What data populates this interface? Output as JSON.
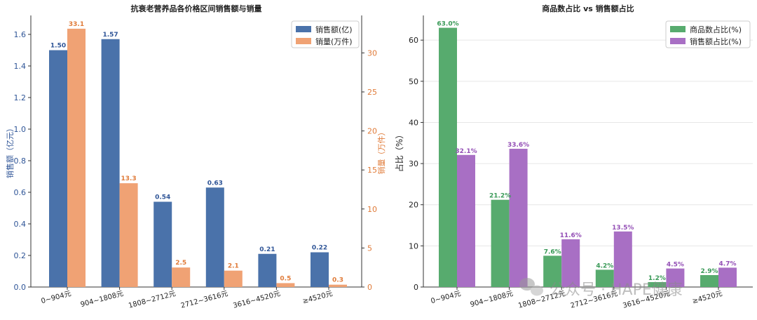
{
  "chart_data": [
    {
      "type": "bar",
      "title": "抗衰老营养品各价格区间销售额与销量",
      "categories": [
        "0~904元",
        "904~1808元",
        "1808~2712元",
        "2712~3616元",
        "3616~4520元",
        "≥4520元"
      ],
      "ylabel": "销售额（亿元）",
      "ylabel_right": "销量（万件）",
      "ylim": [
        0,
        1.72
      ],
      "ylim_right": [
        0,
        34.8
      ],
      "yticks": [
        "0.0",
        "0.2",
        "0.4",
        "0.6",
        "0.8",
        "1.0",
        "1.2",
        "1.4",
        "1.6"
      ],
      "yticks_right": [
        "0",
        "5",
        "10",
        "15",
        "20",
        "25",
        "30"
      ],
      "legend_position": "top-right",
      "series": [
        {
          "name": "销售额(亿)",
          "axis": "left",
          "color": "#4a72aa",
          "label_color": "#2f5597",
          "values": [
            1.5,
            1.57,
            0.54,
            0.63,
            0.21,
            0.22
          ],
          "labels": [
            "1.50",
            "1.57",
            "0.54",
            "0.63",
            "0.21",
            "0.22"
          ]
        },
        {
          "name": "销量(万件)",
          "axis": "right",
          "color": "#f0a274",
          "label_color": "#e07b39",
          "values": [
            33.1,
            13.3,
            2.5,
            2.1,
            0.5,
            0.3
          ],
          "labels": [
            "33.1",
            "13.3",
            "2.5",
            "2.1",
            "0.5",
            "0.3"
          ]
        }
      ]
    },
    {
      "type": "bar",
      "title": "商品数占比 vs 销售额占比",
      "categories": [
        "0~904元",
        "904~1808元",
        "1808~2712元",
        "2712~3616元",
        "3616~4520元",
        "≥4520元"
      ],
      "ylabel": "占比（%）",
      "ylim": [
        0,
        66
      ],
      "yticks": [
        "0",
        "10",
        "20",
        "30",
        "40",
        "50",
        "60"
      ],
      "grid": true,
      "legend_position": "top-right",
      "series": [
        {
          "name": "商品数占比(%)",
          "color": "#57ab6e",
          "label_color": "#3a9a58",
          "values": [
            63.0,
            21.2,
            7.6,
            4.2,
            1.2,
            2.9
          ],
          "labels": [
            "63.0%",
            "21.2%",
            "7.6%",
            "4.2%",
            "1.2%",
            "2.9%"
          ]
        },
        {
          "name": "销售额占比(%)",
          "color": "#a86fc4",
          "label_color": "#9450b6",
          "values": [
            32.1,
            33.6,
            11.6,
            13.5,
            4.5,
            4.7
          ],
          "labels": [
            "32.1%",
            "33.6%",
            "11.6%",
            "13.5%",
            "4.5%",
            "4.7%"
          ]
        }
      ]
    }
  ],
  "watermark": {
    "text": "公众号 · HAPE健康",
    "icon": "wechat-icon"
  }
}
